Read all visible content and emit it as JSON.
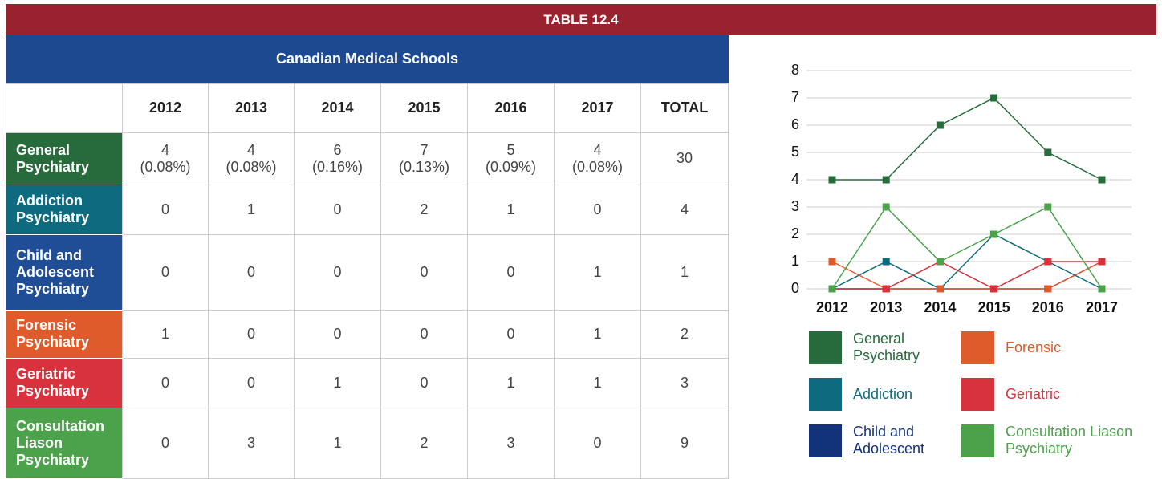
{
  "header": {
    "title": "TABLE 12.4",
    "color": "#98232e"
  },
  "table": {
    "title": "Canadian Medical Schools",
    "title_color": "#1d4990",
    "columns": [
      "2012",
      "2013",
      "2014",
      "2015",
      "2016",
      "2017",
      "TOTAL"
    ],
    "rows": [
      {
        "label": "General Psychiatry",
        "color": "#276a3b",
        "cells": [
          [
            "4",
            "(0.08%)"
          ],
          [
            "4",
            "(0.08%)"
          ],
          [
            "6",
            "(0.16%)"
          ],
          [
            "7",
            "(0.13%)"
          ],
          [
            "5",
            "(0.09%)"
          ],
          [
            "4",
            "(0.08%)"
          ],
          "30"
        ]
      },
      {
        "label": "Addiction Psychiatry",
        "color": "#0e6a7e",
        "cells": [
          "0",
          "1",
          "0",
          "2",
          "1",
          "0",
          "4"
        ]
      },
      {
        "label": "Child and Adolescent Psychiatry",
        "color": "#1f4d96",
        "cells": [
          "0",
          "0",
          "0",
          "0",
          "0",
          "1",
          "1"
        ]
      },
      {
        "label": "Forensic Psychiatry",
        "color": "#e05b2b",
        "cells": [
          "1",
          "0",
          "0",
          "0",
          "0",
          "1",
          "2"
        ]
      },
      {
        "label": "Geriatric Psychiatry",
        "color": "#d8333d",
        "cells": [
          "0",
          "0",
          "1",
          "0",
          "1",
          "1",
          "3"
        ]
      },
      {
        "label": "Consultation Liason Psychiatry",
        "color": "#4ba24a",
        "cells": [
          "0",
          "3",
          "1",
          "2",
          "3",
          "0",
          "9"
        ]
      }
    ]
  },
  "chart_data": {
    "type": "line",
    "categories": [
      "2012",
      "2013",
      "2014",
      "2015",
      "2016",
      "2017"
    ],
    "ylim": [
      0,
      8
    ],
    "yticks": [
      0,
      1,
      2,
      3,
      4,
      5,
      6,
      7,
      8
    ],
    "grid": true,
    "series": [
      {
        "name": "General Psychiatry",
        "color": "#276a3b",
        "values": [
          4,
          4,
          6,
          7,
          5,
          4
        ]
      },
      {
        "name": "Addiction",
        "color": "#0e6a7e",
        "values": [
          0,
          1,
          0,
          2,
          1,
          0
        ]
      },
      {
        "name": "Child and Adolescent",
        "color": "#12327a",
        "values": [
          0,
          0,
          0,
          0,
          0,
          1
        ]
      },
      {
        "name": "Forensic",
        "color": "#e05b2b",
        "values": [
          1,
          0,
          0,
          0,
          0,
          1
        ]
      },
      {
        "name": "Geriatric",
        "color": "#d8333d",
        "values": [
          0,
          0,
          1,
          0,
          1,
          1
        ]
      },
      {
        "name": "Consultation Liason Psychiatry",
        "color": "#4ba24a",
        "values": [
          0,
          3,
          1,
          2,
          3,
          0
        ]
      }
    ]
  }
}
